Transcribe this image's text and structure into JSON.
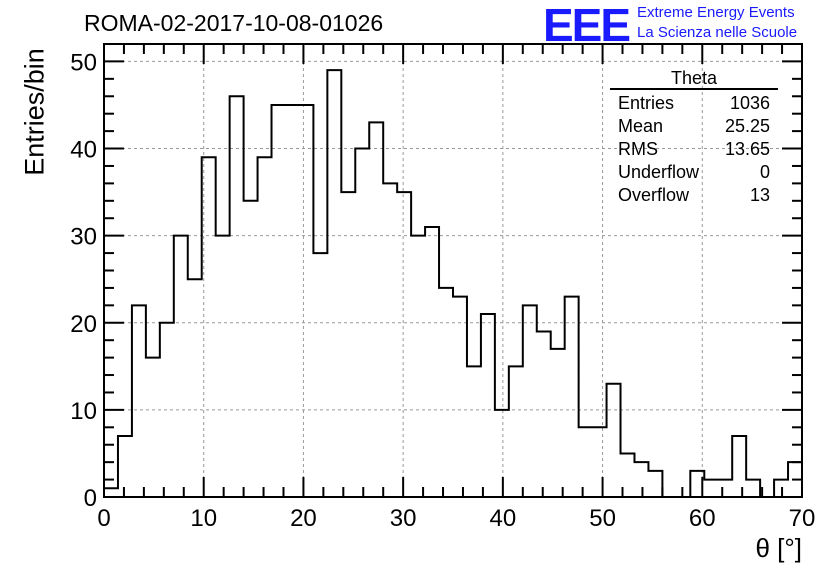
{
  "header": {
    "run_title": "ROMA-02-2017-10-08-01026",
    "logo_mark": "EEE",
    "logo_line1": "Extreme Energy Events",
    "logo_line2": "La Scienza nelle Scuole"
  },
  "stats": {
    "name": "Theta",
    "rows": [
      {
        "label": "Entries",
        "value": "1036"
      },
      {
        "label": "Mean",
        "value": "25.25"
      },
      {
        "label": "RMS",
        "value": "13.65"
      },
      {
        "label": "Underflow",
        "value": "0"
      },
      {
        "label": "Overflow",
        "value": "13"
      }
    ]
  },
  "chart_data": {
    "type": "bar",
    "title": "ROMA-02-2017-10-08-01026",
    "xlabel": "θ [°]",
    "ylabel": "Entries/bin",
    "xlim": [
      0,
      70
    ],
    "ylim": [
      0,
      52
    ],
    "bin_width": 1.4,
    "x_ticks": [
      0,
      10,
      20,
      30,
      40,
      50,
      60,
      70
    ],
    "y_ticks": [
      0,
      10,
      20,
      30,
      40,
      50
    ],
    "grid": true,
    "legend": "none",
    "values": [
      1,
      7,
      22,
      16,
      20,
      30,
      25,
      39,
      30,
      46,
      34,
      39,
      45,
      45,
      45,
      28,
      49,
      35,
      40,
      43,
      36,
      35,
      30,
      31,
      24,
      23,
      15,
      21,
      10,
      15,
      22,
      19,
      17,
      23,
      8,
      8,
      13,
      5,
      4,
      3,
      0,
      0,
      3,
      2,
      2,
      7,
      2,
      0,
      2,
      4
    ],
    "line_color": "#000000"
  }
}
